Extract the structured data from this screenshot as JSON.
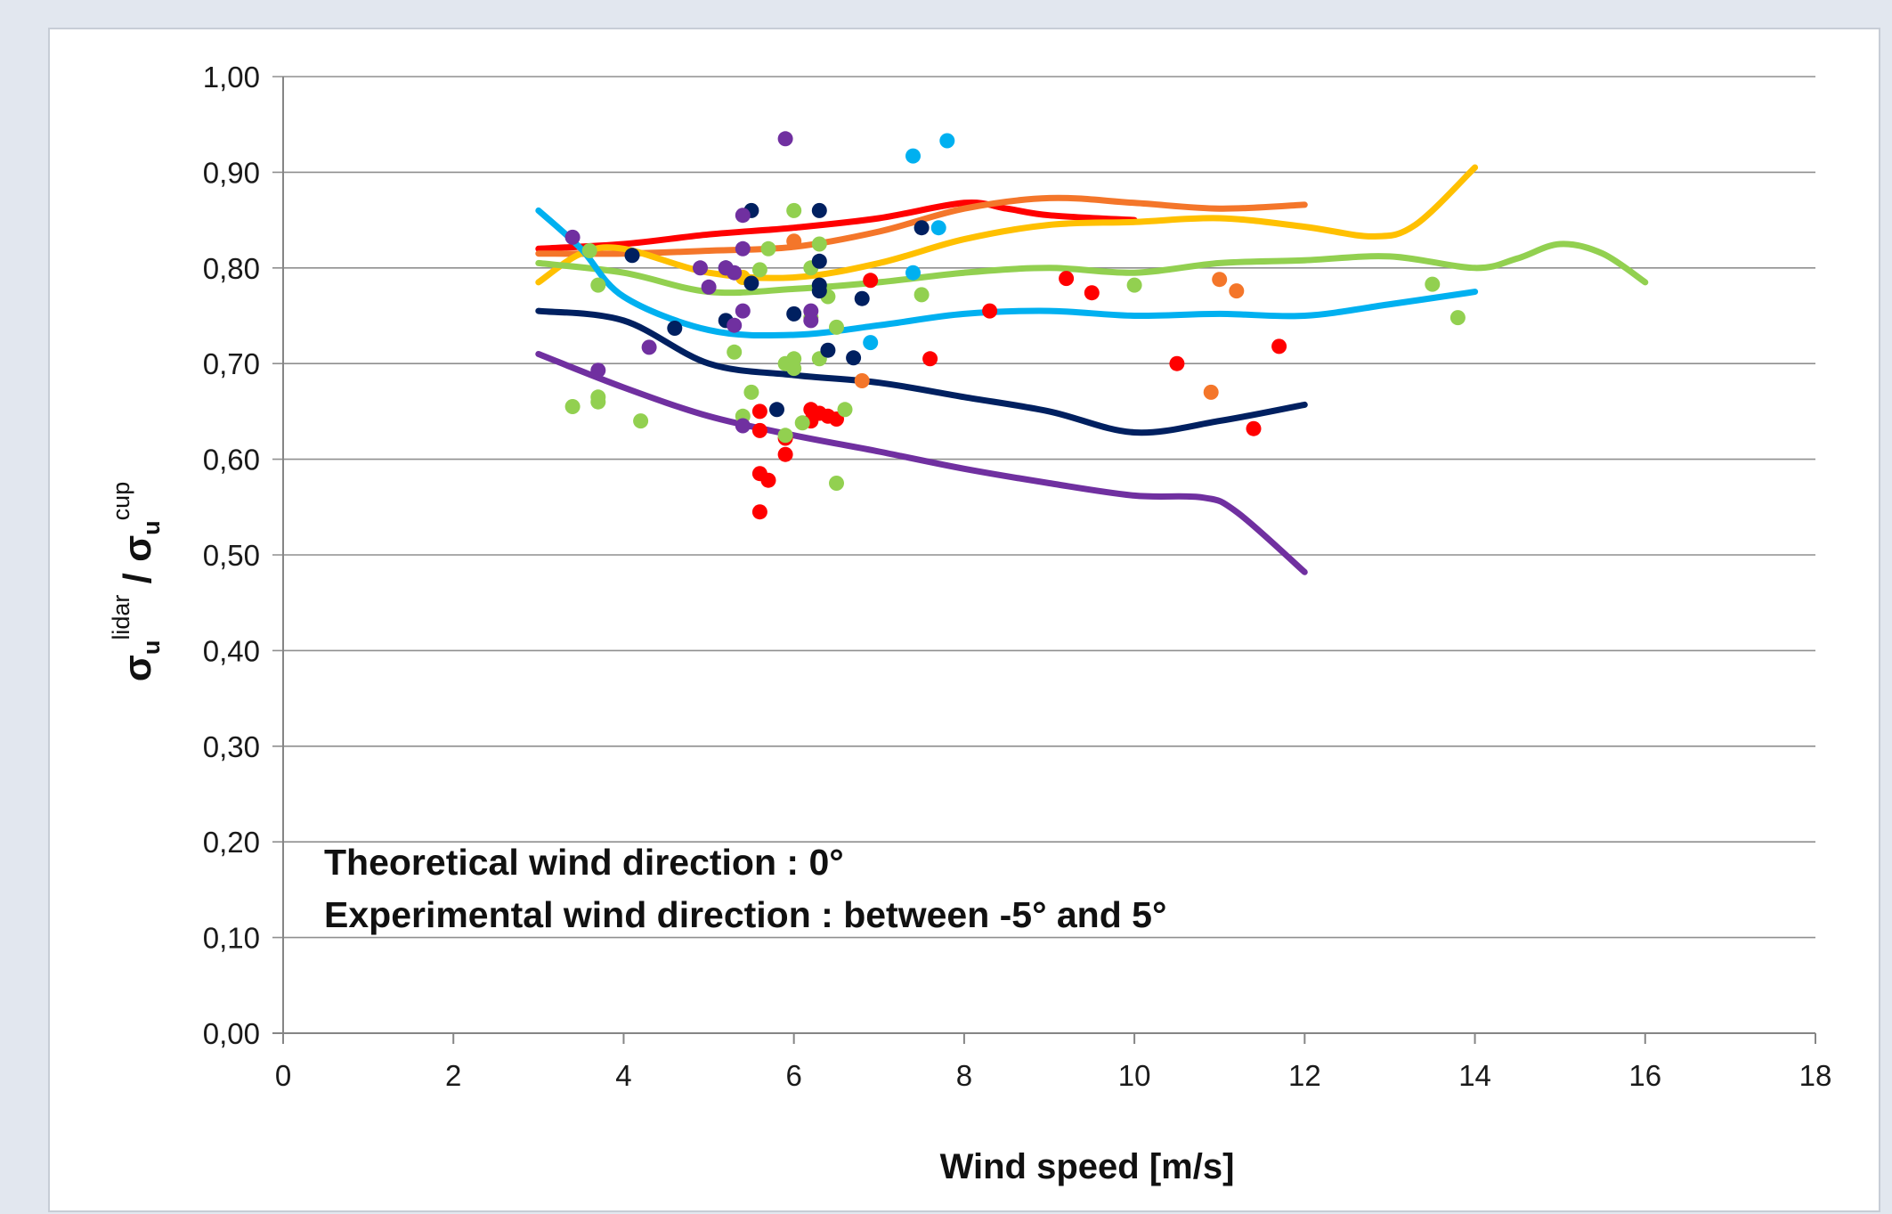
{
  "chart_data": {
    "type": "scatter",
    "title": "",
    "xlabel": "Wind speed [m/s]",
    "ylabel": {
      "prefix": "σ",
      "sub": "u",
      "sup": "lidar",
      "sep": " / σ",
      "sub2": "u",
      "sup2": "cup"
    },
    "xlim": [
      0,
      18
    ],
    "ylim": [
      0,
      1
    ],
    "x_ticks": [
      0,
      2,
      4,
      6,
      8,
      10,
      12,
      14,
      16,
      18
    ],
    "x_tick_labels": [
      "0",
      "2",
      "4",
      "6",
      "8",
      "10",
      "12",
      "14",
      "16",
      "18"
    ],
    "y_ticks": [
      0,
      0.1,
      0.2,
      0.3,
      0.4,
      0.5,
      0.6,
      0.7,
      0.8,
      0.9,
      1.0
    ],
    "y_tick_labels": [
      "0,00",
      "0,10",
      "0,20",
      "0,30",
      "0,40",
      "0,50",
      "0,60",
      "0,70",
      "0,80",
      "0,90",
      "1,00"
    ],
    "grid": true,
    "annotations": [
      "Theoretical wind direction : 0°",
      "Experimental wind direction : between -5° and 5°"
    ],
    "series": [
      {
        "color": "#ff0000",
        "line": [
          [
            3,
            0.82
          ],
          [
            4,
            0.825
          ],
          [
            5,
            0.835
          ],
          [
            6,
            0.842
          ],
          [
            7,
            0.852
          ],
          [
            8,
            0.868
          ],
          [
            8.5,
            0.862
          ],
          [
            9,
            0.855
          ],
          [
            10,
            0.85
          ]
        ],
        "points": [
          [
            6.9,
            0.787
          ],
          [
            7.6,
            0.705
          ],
          [
            8.3,
            0.755
          ],
          [
            9.2,
            0.789
          ],
          [
            9.5,
            0.774
          ],
          [
            10.5,
            0.7
          ],
          [
            11.4,
            0.632
          ],
          [
            11.7,
            0.718
          ],
          [
            5.6,
            0.65
          ],
          [
            5.6,
            0.63
          ],
          [
            5.6,
            0.585
          ],
          [
            5.7,
            0.578
          ],
          [
            5.6,
            0.545
          ],
          [
            5.9,
            0.605
          ],
          [
            5.9,
            0.622
          ],
          [
            6.2,
            0.652
          ],
          [
            6.3,
            0.648
          ],
          [
            6.2,
            0.64
          ],
          [
            6.5,
            0.642
          ],
          [
            6.4,
            0.645
          ]
        ]
      },
      {
        "color": "#f4762a",
        "line": [
          [
            3,
            0.815
          ],
          [
            4,
            0.815
          ],
          [
            5,
            0.818
          ],
          [
            6,
            0.822
          ],
          [
            7,
            0.838
          ],
          [
            8,
            0.862
          ],
          [
            9,
            0.873
          ],
          [
            10,
            0.868
          ],
          [
            11,
            0.862
          ],
          [
            12,
            0.866
          ]
        ],
        "points": [
          [
            6.0,
            0.828
          ],
          [
            6.8,
            0.682
          ],
          [
            10.9,
            0.67
          ],
          [
            11.0,
            0.788
          ],
          [
            11.2,
            0.776
          ]
        ]
      },
      {
        "color": "#ffc000",
        "line": [
          [
            3,
            0.785
          ],
          [
            3.5,
            0.815
          ],
          [
            4,
            0.82
          ],
          [
            5,
            0.795
          ],
          [
            6,
            0.79
          ],
          [
            7,
            0.805
          ],
          [
            8,
            0.83
          ],
          [
            9,
            0.845
          ],
          [
            10,
            0.848
          ],
          [
            11,
            0.852
          ],
          [
            12,
            0.843
          ],
          [
            12.8,
            0.833
          ],
          [
            13.3,
            0.845
          ],
          [
            14,
            0.905
          ]
        ],
        "points": [
          [
            5.4,
            0.79
          ]
        ]
      },
      {
        "color": "#92d050",
        "line": [
          [
            3,
            0.805
          ],
          [
            4,
            0.795
          ],
          [
            5,
            0.775
          ],
          [
            6,
            0.778
          ],
          [
            7,
            0.785
          ],
          [
            8,
            0.795
          ],
          [
            9,
            0.8
          ],
          [
            10,
            0.795
          ],
          [
            11,
            0.805
          ],
          [
            12,
            0.808
          ],
          [
            13,
            0.812
          ],
          [
            14,
            0.8
          ],
          [
            14.5,
            0.81
          ],
          [
            15,
            0.825
          ],
          [
            15.5,
            0.815
          ],
          [
            16,
            0.785
          ]
        ],
        "points": [
          [
            3.4,
            0.655
          ],
          [
            3.6,
            0.818
          ],
          [
            3.7,
            0.665
          ],
          [
            3.7,
            0.66
          ],
          [
            3.7,
            0.782
          ],
          [
            4.2,
            0.64
          ],
          [
            5.3,
            0.712
          ],
          [
            5.4,
            0.645
          ],
          [
            5.5,
            0.67
          ],
          [
            5.6,
            0.798
          ],
          [
            5.7,
            0.82
          ],
          [
            6.0,
            0.86
          ],
          [
            5.9,
            0.625
          ],
          [
            5.9,
            0.7
          ],
          [
            6.0,
            0.705
          ],
          [
            6.0,
            0.695
          ],
          [
            6.1,
            0.638
          ],
          [
            6.2,
            0.748
          ],
          [
            6.2,
            0.8
          ],
          [
            6.3,
            0.825
          ],
          [
            6.3,
            0.705
          ],
          [
            6.4,
            0.77
          ],
          [
            6.5,
            0.738
          ],
          [
            6.5,
            0.575
          ],
          [
            6.6,
            0.652
          ],
          [
            7.5,
            0.772
          ],
          [
            10.0,
            0.782
          ],
          [
            13.5,
            0.783
          ],
          [
            13.8,
            0.748
          ]
        ]
      },
      {
        "color": "#00b0f0",
        "line": [
          [
            3,
            0.86
          ],
          [
            3.5,
            0.82
          ],
          [
            4,
            0.77
          ],
          [
            5,
            0.735
          ],
          [
            6,
            0.73
          ],
          [
            7,
            0.74
          ],
          [
            8,
            0.752
          ],
          [
            9,
            0.755
          ],
          [
            10,
            0.75
          ],
          [
            11,
            0.752
          ],
          [
            12,
            0.75
          ],
          [
            13,
            0.762
          ],
          [
            14,
            0.775
          ]
        ],
        "points": [
          [
            6.9,
            0.722
          ],
          [
            7.4,
            0.917
          ],
          [
            7.4,
            0.795
          ],
          [
            7.7,
            0.842
          ],
          [
            7.8,
            0.933
          ]
        ]
      },
      {
        "color": "#002060",
        "line": [
          [
            3,
            0.755
          ],
          [
            4,
            0.745
          ],
          [
            5,
            0.7
          ],
          [
            6,
            0.688
          ],
          [
            7,
            0.68
          ],
          [
            8,
            0.665
          ],
          [
            9,
            0.65
          ],
          [
            10,
            0.628
          ],
          [
            11,
            0.64
          ],
          [
            12,
            0.657
          ]
        ],
        "points": [
          [
            4.1,
            0.813
          ],
          [
            4.6,
            0.737
          ],
          [
            5.2,
            0.745
          ],
          [
            5.2,
            0.8
          ],
          [
            5.5,
            0.86
          ],
          [
            5.5,
            0.784
          ],
          [
            5.8,
            0.652
          ],
          [
            6.0,
            0.752
          ],
          [
            6.3,
            0.86
          ],
          [
            6.3,
            0.807
          ],
          [
            6.3,
            0.782
          ],
          [
            6.3,
            0.776
          ],
          [
            6.4,
            0.714
          ],
          [
            6.7,
            0.706
          ],
          [
            6.8,
            0.768
          ],
          [
            7.5,
            0.842
          ]
        ]
      },
      {
        "color": "#7030a0",
        "line": [
          [
            3,
            0.71
          ],
          [
            4,
            0.675
          ],
          [
            5,
            0.645
          ],
          [
            6,
            0.625
          ],
          [
            7,
            0.608
          ],
          [
            8,
            0.59
          ],
          [
            9,
            0.575
          ],
          [
            10,
            0.562
          ],
          [
            10.8,
            0.56
          ],
          [
            11.2,
            0.545
          ],
          [
            12,
            0.482
          ]
        ],
        "points": [
          [
            3.4,
            0.832
          ],
          [
            3.7,
            0.693
          ],
          [
            4.3,
            0.717
          ],
          [
            4.9,
            0.8
          ],
          [
            5.0,
            0.78
          ],
          [
            5.2,
            0.8
          ],
          [
            5.3,
            0.795
          ],
          [
            5.3,
            0.74
          ],
          [
            5.4,
            0.755
          ],
          [
            5.4,
            0.82
          ],
          [
            5.4,
            0.855
          ],
          [
            5.4,
            0.635
          ],
          [
            5.9,
            0.935
          ],
          [
            6.2,
            0.755
          ],
          [
            6.2,
            0.745
          ]
        ]
      }
    ]
  }
}
